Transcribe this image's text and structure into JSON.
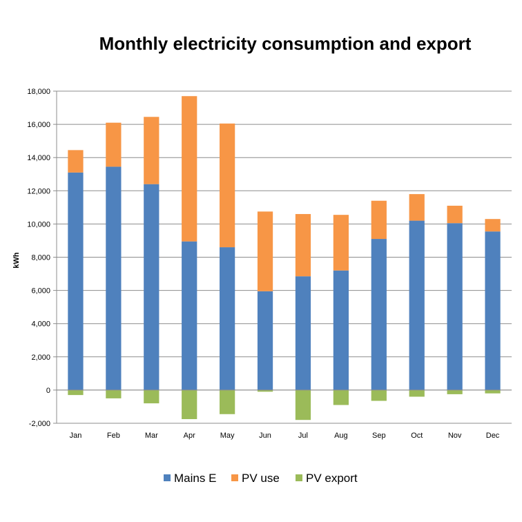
{
  "chart_data": {
    "type": "bar",
    "stacked": true,
    "title": "Monthly electricity consumption and export",
    "xlabel": "",
    "ylabel": "kWh",
    "ylim": [
      -2000,
      18000
    ],
    "yticks": [
      -2000,
      0,
      2000,
      4000,
      6000,
      8000,
      10000,
      12000,
      14000,
      16000,
      18000
    ],
    "ytick_labels": [
      "-2,000",
      "0",
      "2,000",
      "4,000",
      "6,000",
      "8,000",
      "10,000",
      "12,000",
      "14,000",
      "16,000",
      "18,000"
    ],
    "grid": "horizontal",
    "legend_position": "bottom",
    "categories": [
      "Jan",
      "Feb",
      "Mar",
      "Apr",
      "May",
      "Jun",
      "Jul",
      "Aug",
      "Sep",
      "Oct",
      "Nov",
      "Dec"
    ],
    "series": [
      {
        "name": "Mains E",
        "color": "#4F81BD",
        "values": [
          13100,
          13450,
          12400,
          8950,
          8600,
          5950,
          6850,
          7200,
          9100,
          10200,
          10050,
          9550
        ]
      },
      {
        "name": "PV use",
        "color": "#F79646",
        "values": [
          1350,
          2650,
          4050,
          8750,
          7450,
          4800,
          3750,
          3350,
          2300,
          1600,
          1050,
          750
        ]
      },
      {
        "name": "PV export",
        "color": "#9BBB59",
        "values": [
          -300,
          -500,
          -800,
          -1750,
          -1450,
          -100,
          -1800,
          -900,
          -650,
          -400,
          -250,
          -200
        ]
      }
    ]
  }
}
